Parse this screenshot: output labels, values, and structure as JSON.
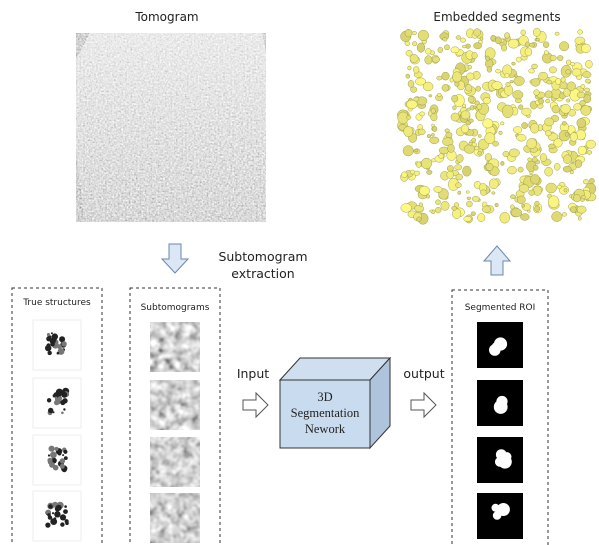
{
  "top": {
    "tomogram_title": "Tomogram",
    "segments_title": "Embedded segments"
  },
  "extraction_label": [
    "Subtomogram",
    "extraction"
  ],
  "panels": {
    "true_structures": "True structures",
    "subtomograms": "Subtomograms",
    "segmented_roi": "Segmented ROI"
  },
  "network": {
    "input_label": "Input",
    "output_label": "output",
    "lines": [
      "3D",
      "Segmentation",
      "Nework"
    ]
  }
}
